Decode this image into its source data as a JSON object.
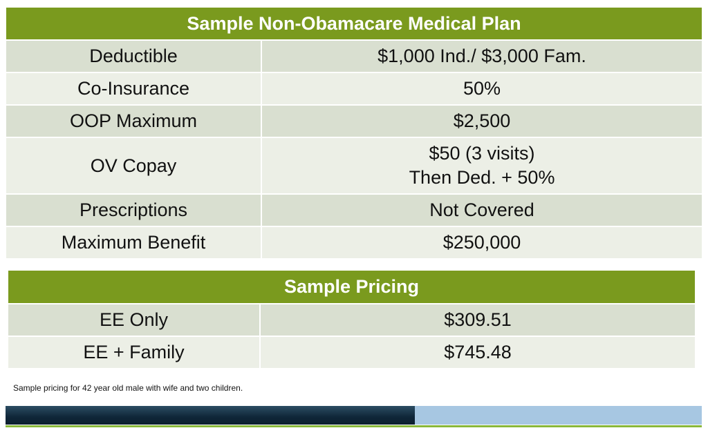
{
  "plan": {
    "title": "Sample Non-Obamacare Medical Plan",
    "rows": [
      {
        "label": "Deductible",
        "value": "$1,000 Ind./ $3,000 Fam."
      },
      {
        "label": "Co-Insurance",
        "value": "50%"
      },
      {
        "label": "OOP Maximum",
        "value": "$2,500"
      },
      {
        "label": "OV Copay",
        "value_line1": "$50 (3 visits)",
        "value_line2": "Then Ded. + 50%"
      },
      {
        "label": "Prescriptions",
        "value": "Not Covered"
      },
      {
        "label": "Maximum Benefit",
        "value": "$250,000"
      }
    ]
  },
  "pricing": {
    "title": "Sample Pricing",
    "rows": [
      {
        "label": "EE Only",
        "value": "$309.51"
      },
      {
        "label": "EE + Family",
        "value": "$745.48"
      }
    ]
  },
  "footnote": "Sample pricing for 42 year old male with wife and two children.",
  "colors": {
    "header_green": "#7a9a1e",
    "row_dark": "#d9dfd0",
    "row_light": "#ecefe6",
    "bar_navy": "#0f2638",
    "bar_light_blue": "#a7c7e2",
    "bar_green_line": "#8ab83a"
  }
}
